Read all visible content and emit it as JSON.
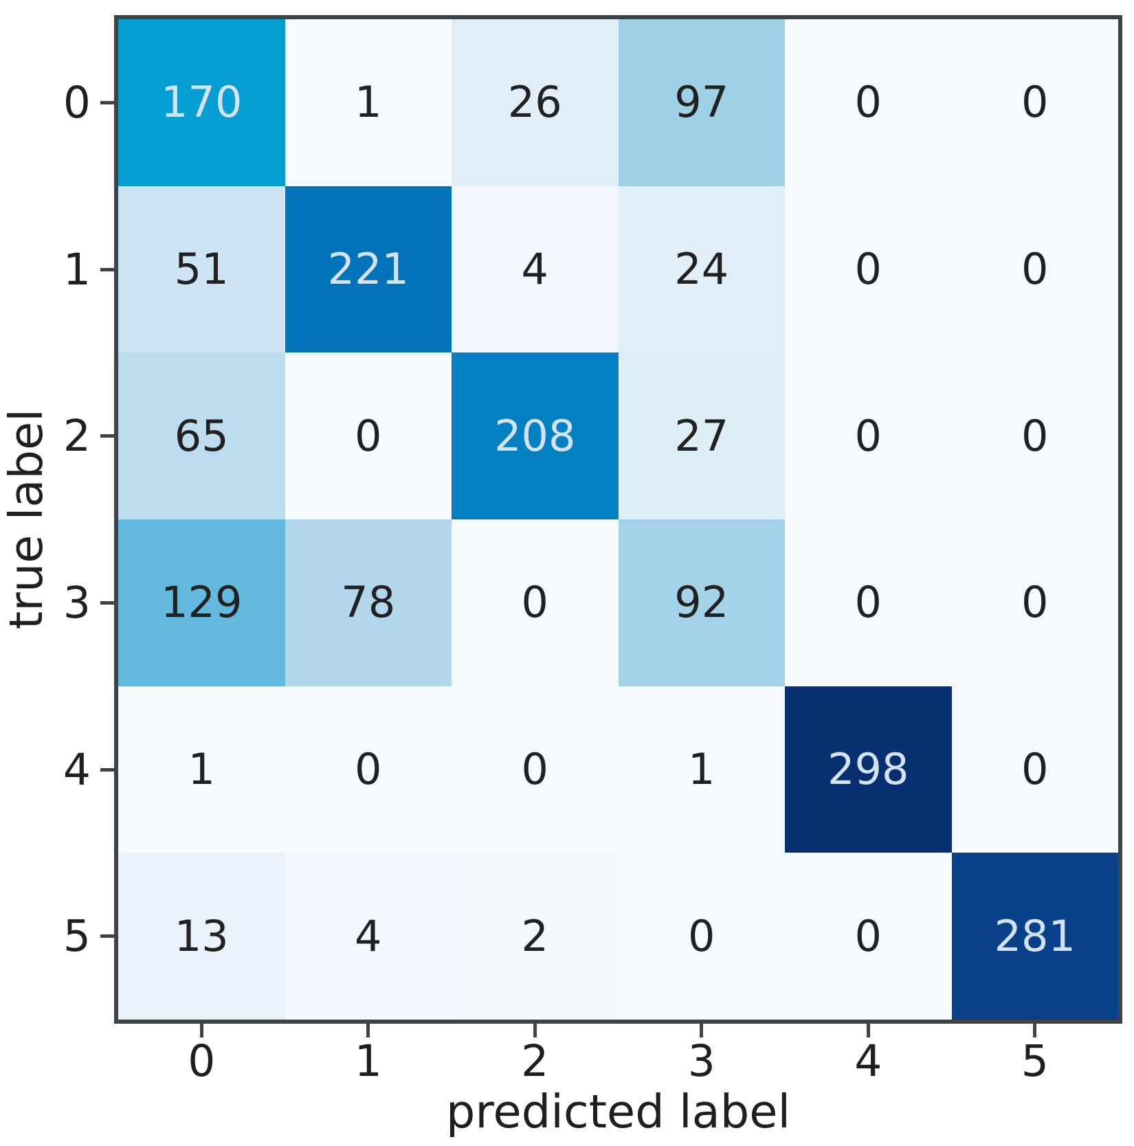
{
  "chart_data": {
    "type": "heatmap",
    "subtype": "confusion-matrix",
    "title": "",
    "xlabel": "predicted label",
    "ylabel": "true label",
    "x_ticklabels": [
      "0",
      "1",
      "2",
      "3",
      "4",
      "5"
    ],
    "y_ticklabels": [
      "0",
      "1",
      "2",
      "3",
      "4",
      "5"
    ],
    "matrix": [
      [
        170,
        1,
        26,
        97,
        0,
        0
      ],
      [
        51,
        221,
        4,
        24,
        0,
        0
      ],
      [
        65,
        0,
        208,
        27,
        0,
        0
      ],
      [
        129,
        78,
        0,
        92,
        0,
        0
      ],
      [
        1,
        0,
        0,
        1,
        298,
        0
      ],
      [
        13,
        4,
        2,
        0,
        0,
        281
      ]
    ],
    "colormap": "Blues-like sequential",
    "vmin": 0,
    "vmax": 298,
    "grid": false,
    "legend": "none",
    "value_colors": {
      "0": "#f5fafe",
      "1": "#f5fafe",
      "2": "#f3f9fd",
      "4": "#f2f8fd",
      "13": "#e9f2fa",
      "24": "#e1eff8",
      "26": "#dfeef8",
      "27": "#deeef7",
      "51": "#cce4f3",
      "65": "#bddcef",
      "78": "#b2d7ec",
      "92": "#a4d2e8",
      "97": "#9ed0e6",
      "129": "#63bade",
      "170": "#059ed3",
      "208": "#0280c1",
      "221": "#0273b8",
      "281": "#09418a",
      "298": "#082f70"
    },
    "light_text_values": [
      170,
      208,
      221,
      281,
      298
    ],
    "colors": {
      "dark_text": "#212121",
      "light_text": "#d3e3f1",
      "tick_text": "#1f1f1f",
      "spine": "#3f4348",
      "background": "#ffffff"
    }
  }
}
